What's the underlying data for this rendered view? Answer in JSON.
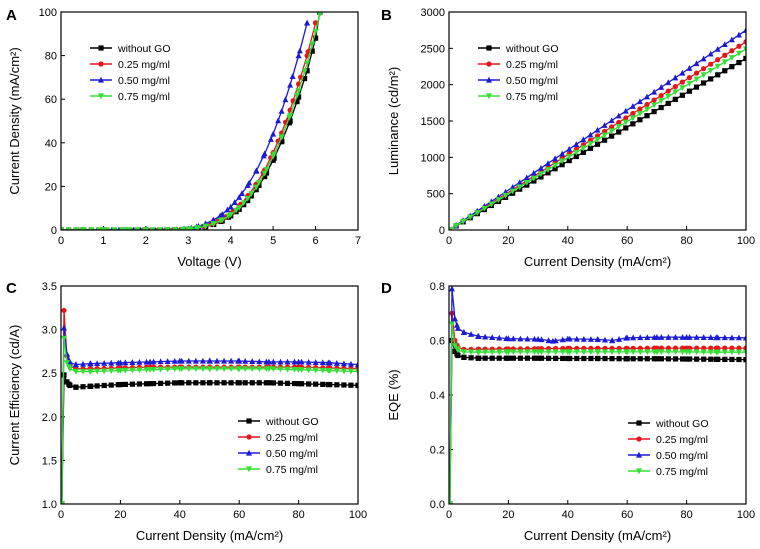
{
  "figure": {
    "colors": {
      "without_go": "#000000",
      "c025": "#e8141b",
      "c050": "#1b1bd6",
      "c075": "#33e033"
    }
  },
  "chart_data": [
    {
      "panel": "A",
      "type": "line",
      "xlabel": "Voltage (V)",
      "ylabel": "Current Density (mA/cm²)",
      "xlim": [
        0,
        7
      ],
      "ylim": [
        0,
        100
      ],
      "xticks": [
        0,
        1,
        2,
        3,
        4,
        5,
        6,
        7
      ],
      "yticks": [
        0,
        20,
        40,
        60,
        80,
        100
      ],
      "legend_position": "top-left",
      "series": [
        {
          "name": "without GO",
          "color": "#000000",
          "marker": "square",
          "x": [
            0,
            0.5,
            1,
            1.5,
            2,
            2.5,
            3,
            3.2,
            3.4,
            3.6,
            3.8,
            4,
            4.2,
            4.4,
            4.6,
            4.8,
            5,
            5.2,
            5.4,
            5.6,
            5.8,
            6,
            6.1
          ],
          "y": [
            0,
            0,
            0,
            0,
            0,
            0,
            0.3,
            0.8,
            1.5,
            2.6,
            4.2,
            6.5,
            9.5,
            13.5,
            18.5,
            24.5,
            32,
            40.5,
            50,
            61,
            73,
            88,
            100
          ]
        },
        {
          "name": "0.25 mg/ml",
          "color": "#e8141b",
          "marker": "circle",
          "x": [
            0,
            0.5,
            1,
            1.5,
            2,
            2.5,
            3,
            3.2,
            3.4,
            3.6,
            3.8,
            4,
            4.2,
            4.4,
            4.6,
            4.8,
            5,
            5.2,
            5.4,
            5.6,
            5.8,
            6
          ],
          "y": [
            0,
            0,
            0,
            0,
            0,
            0,
            0.4,
            1,
            1.9,
            3.2,
            5,
            7.6,
            11,
            15.5,
            21,
            27.5,
            35.5,
            44.5,
            55,
            67,
            80,
            95
          ]
        },
        {
          "name": "0.50 mg/ml",
          "color": "#1b1bd6",
          "marker": "triangle",
          "x": [
            0,
            0.5,
            1,
            1.5,
            2,
            2.5,
            3,
            3.2,
            3.4,
            3.6,
            3.8,
            4,
            4.2,
            4.4,
            4.6,
            4.8,
            5,
            5.2,
            5.4,
            5.6,
            5.8
          ],
          "y": [
            0,
            0,
            0,
            0,
            0,
            0,
            0.6,
            1.5,
            2.8,
            4.6,
            7.2,
            10.6,
            15,
            20.5,
            27,
            35,
            44,
            54.5,
            66.5,
            80,
            95
          ]
        },
        {
          "name": "0.75 mg/ml",
          "color": "#33e033",
          "marker": "triangle-down",
          "x": [
            0,
            0.5,
            1,
            1.5,
            2,
            2.5,
            3,
            3.2,
            3.4,
            3.6,
            3.8,
            4,
            4.2,
            4.4,
            4.6,
            4.8,
            5,
            5.2,
            5.4,
            5.6,
            5.8,
            6,
            6.1
          ],
          "y": [
            0,
            0,
            0,
            0,
            0,
            0,
            0.35,
            0.9,
            1.7,
            2.9,
            4.6,
            7,
            10.2,
            14.4,
            19.6,
            26,
            33.8,
            42.5,
            52.5,
            63.8,
            76.5,
            91,
            99
          ]
        }
      ]
    },
    {
      "panel": "B",
      "type": "line",
      "xlabel": "Current Density (mA/cm²)",
      "ylabel": "Luminance (cd/m²)",
      "xlim": [
        0,
        100
      ],
      "ylim": [
        0,
        3000
      ],
      "xticks": [
        0,
        20,
        40,
        60,
        80,
        100
      ],
      "yticks": [
        0,
        500,
        1000,
        1500,
        2000,
        2500,
        3000
      ],
      "legend_position": "top-left",
      "series": [
        {
          "name": "without GO",
          "color": "#000000",
          "marker": "square",
          "x": [
            0,
            100
          ],
          "y": [
            0,
            2360
          ]
        },
        {
          "name": "0.25 mg/ml",
          "color": "#e8141b",
          "marker": "circle",
          "x": [
            0,
            100
          ],
          "y": [
            0,
            2590
          ]
        },
        {
          "name": "0.50 mg/ml",
          "color": "#1b1bd6",
          "marker": "triangle",
          "x": [
            0,
            100
          ],
          "y": [
            0,
            2750
          ]
        },
        {
          "name": "0.75 mg/ml",
          "color": "#33e033",
          "marker": "triangle-down",
          "x": [
            0,
            100
          ],
          "y": [
            0,
            2490
          ]
        }
      ]
    },
    {
      "panel": "C",
      "type": "line",
      "xlabel": "Current Density (mA/cm²)",
      "ylabel": "Current Efficiency (cd/A)",
      "xlim": [
        0,
        100
      ],
      "ylim": [
        1.0,
        3.5
      ],
      "xticks": [
        0,
        20,
        40,
        60,
        80,
        100
      ],
      "yticks": [
        1.0,
        1.5,
        2.0,
        2.5,
        3.0,
        3.5
      ],
      "legend_position": "bottom-right",
      "series": [
        {
          "name": "without GO",
          "color": "#000000",
          "marker": "square",
          "x": [
            0.3,
            1,
            2,
            3,
            5,
            10,
            20,
            30,
            40,
            50,
            60,
            70,
            80,
            90,
            100
          ],
          "y": [
            1.0,
            2.48,
            2.4,
            2.36,
            2.34,
            2.35,
            2.37,
            2.38,
            2.39,
            2.39,
            2.39,
            2.39,
            2.38,
            2.37,
            2.36
          ]
        },
        {
          "name": "0.25 mg/ml",
          "color": "#e8141b",
          "marker": "circle",
          "x": [
            0.3,
            1,
            2,
            3,
            5,
            10,
            20,
            30,
            40,
            50,
            60,
            70,
            80,
            90,
            100
          ],
          "y": [
            1.0,
            3.22,
            2.7,
            2.58,
            2.55,
            2.55,
            2.56,
            2.57,
            2.57,
            2.57,
            2.57,
            2.57,
            2.57,
            2.56,
            2.55
          ]
        },
        {
          "name": "0.50 mg/ml",
          "color": "#1b1bd6",
          "marker": "triangle",
          "x": [
            0.3,
            1,
            2,
            3,
            5,
            10,
            20,
            30,
            40,
            50,
            60,
            70,
            80,
            90,
            100
          ],
          "y": [
            1.0,
            3.02,
            2.72,
            2.62,
            2.6,
            2.61,
            2.62,
            2.63,
            2.64,
            2.64,
            2.64,
            2.63,
            2.63,
            2.62,
            2.6
          ]
        },
        {
          "name": "0.75 mg/ml",
          "color": "#33e033",
          "marker": "triangle-down",
          "x": [
            0.3,
            1,
            2,
            3,
            5,
            10,
            20,
            30,
            40,
            50,
            60,
            70,
            80,
            90,
            100
          ],
          "y": [
            1.0,
            2.9,
            2.62,
            2.55,
            2.52,
            2.52,
            2.53,
            2.54,
            2.55,
            2.55,
            2.55,
            2.55,
            2.54,
            2.53,
            2.52
          ]
        }
      ]
    },
    {
      "panel": "D",
      "type": "line",
      "xlabel": "Current Density (mA/cm²)",
      "ylabel": "EQE (%)",
      "xlim": [
        0,
        100
      ],
      "ylim": [
        0.0,
        0.8
      ],
      "xticks": [
        0,
        20,
        40,
        60,
        80,
        100
      ],
      "yticks": [
        0.0,
        0.2,
        0.4,
        0.6,
        0.8
      ],
      "legend_position": "bottom-right",
      "series": [
        {
          "name": "without GO",
          "color": "#000000",
          "marker": "square",
          "x": [
            0.3,
            1,
            2,
            3,
            5,
            10,
            20,
            30,
            40,
            50,
            60,
            70,
            80,
            90,
            100
          ],
          "y": [
            0.0,
            0.6,
            0.56,
            0.545,
            0.538,
            0.535,
            0.535,
            0.535,
            0.534,
            0.534,
            0.533,
            0.533,
            0.532,
            0.531,
            0.53
          ]
        },
        {
          "name": "0.25 mg/ml",
          "color": "#e8141b",
          "marker": "circle",
          "x": [
            0.3,
            1,
            2,
            3,
            5,
            10,
            20,
            30,
            40,
            50,
            60,
            70,
            80,
            90,
            100
          ],
          "y": [
            0.0,
            0.7,
            0.6,
            0.575,
            0.567,
            0.568,
            0.569,
            0.57,
            0.571,
            0.571,
            0.571,
            0.572,
            0.572,
            0.572,
            0.572
          ]
        },
        {
          "name": "0.50 mg/ml",
          "color": "#1b1bd6",
          "marker": "triangle",
          "x": [
            0.3,
            1,
            2,
            3,
            5,
            10,
            20,
            30,
            35,
            40,
            50,
            55,
            60,
            70,
            80,
            90,
            100
          ],
          "y": [
            0.0,
            0.79,
            0.68,
            0.645,
            0.63,
            0.615,
            0.607,
            0.605,
            0.598,
            0.606,
            0.604,
            0.6,
            0.61,
            0.612,
            0.612,
            0.611,
            0.61
          ]
        },
        {
          "name": "0.75 mg/ml",
          "color": "#33e033",
          "marker": "triangle-down",
          "x": [
            0.3,
            1,
            2,
            3,
            5,
            10,
            20,
            30,
            40,
            50,
            60,
            70,
            80,
            90,
            100
          ],
          "y": [
            0.0,
            0.66,
            0.58,
            0.565,
            0.558,
            0.557,
            0.558,
            0.558,
            0.558,
            0.558,
            0.558,
            0.558,
            0.558,
            0.557,
            0.557
          ]
        }
      ]
    }
  ]
}
